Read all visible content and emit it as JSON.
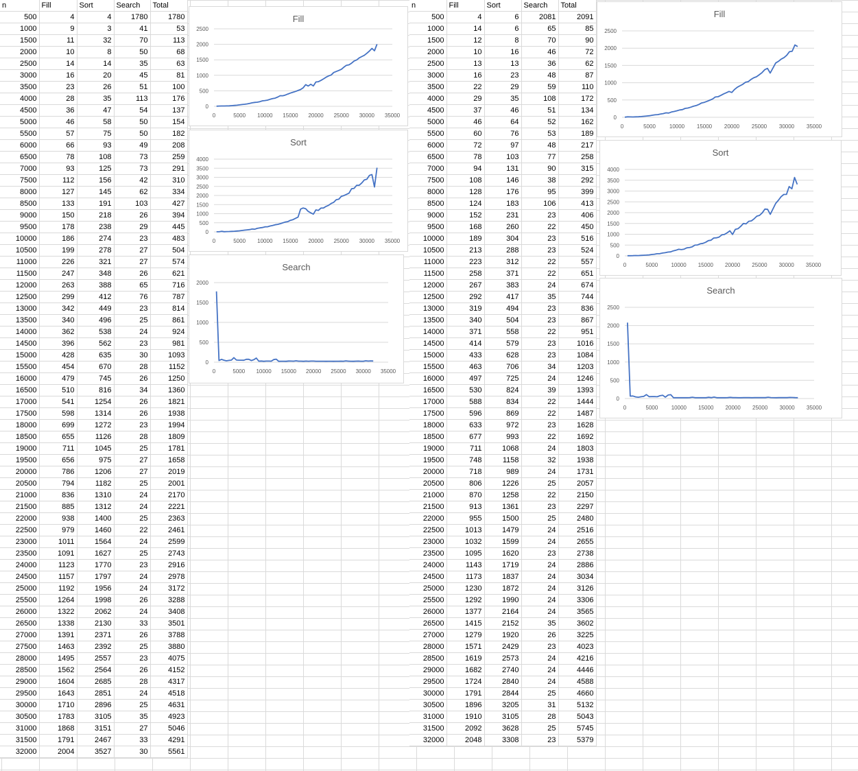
{
  "sheet": {
    "left_table": {
      "headers": [
        "n",
        "Fill",
        "Sort",
        "Search",
        "Total"
      ],
      "rows": [
        [
          500,
          4,
          4,
          1780,
          1780
        ],
        [
          1000,
          9,
          3,
          41,
          53
        ],
        [
          1500,
          11,
          32,
          70,
          113
        ],
        [
          2000,
          10,
          8,
          50,
          68
        ],
        [
          2500,
          14,
          14,
          35,
          63
        ],
        [
          3000,
          16,
          20,
          45,
          81
        ],
        [
          3500,
          23,
          26,
          51,
          100
        ],
        [
          4000,
          28,
          35,
          113,
          176
        ],
        [
          4500,
          36,
          47,
          54,
          137
        ],
        [
          5000,
          46,
          58,
          50,
          154
        ],
        [
          5500,
          57,
          75,
          50,
          182
        ],
        [
          6000,
          66,
          93,
          49,
          208
        ],
        [
          6500,
          78,
          108,
          73,
          259
        ],
        [
          7000,
          93,
          125,
          73,
          291
        ],
        [
          7500,
          112,
          156,
          42,
          310
        ],
        [
          8000,
          127,
          145,
          62,
          334
        ],
        [
          8500,
          133,
          191,
          103,
          427
        ],
        [
          9000,
          150,
          218,
          26,
          394
        ],
        [
          9500,
          178,
          238,
          29,
          445
        ],
        [
          10000,
          186,
          274,
          23,
          483
        ],
        [
          10500,
          199,
          278,
          27,
          504
        ],
        [
          11000,
          226,
          321,
          27,
          574
        ],
        [
          11500,
          247,
          348,
          26,
          621
        ],
        [
          12000,
          263,
          388,
          65,
          716
        ],
        [
          12500,
          299,
          412,
          76,
          787
        ],
        [
          13000,
          342,
          449,
          23,
          814
        ],
        [
          13500,
          340,
          496,
          25,
          861
        ],
        [
          14000,
          362,
          538,
          24,
          924
        ],
        [
          14500,
          396,
          562,
          23,
          981
        ],
        [
          15000,
          428,
          635,
          30,
          1093
        ],
        [
          15500,
          454,
          670,
          28,
          1152
        ],
        [
          16000,
          479,
          745,
          26,
          1250
        ],
        [
          16500,
          510,
          816,
          34,
          1360
        ],
        [
          17000,
          541,
          1254,
          26,
          1821
        ],
        [
          17500,
          598,
          1314,
          26,
          1938
        ],
        [
          18000,
          699,
          1272,
          23,
          1994
        ],
        [
          18500,
          655,
          1126,
          28,
          1809
        ],
        [
          19000,
          711,
          1045,
          25,
          1781
        ],
        [
          19500,
          656,
          975,
          27,
          1658
        ],
        [
          20000,
          786,
          1206,
          27,
          2019
        ],
        [
          20500,
          794,
          1182,
          25,
          2001
        ],
        [
          21000,
          836,
          1310,
          24,
          2170
        ],
        [
          21500,
          885,
          1312,
          24,
          2221
        ],
        [
          22000,
          938,
          1400,
          25,
          2363
        ],
        [
          22500,
          979,
          1460,
          22,
          2461
        ],
        [
          23000,
          1011,
          1564,
          24,
          2599
        ],
        [
          23500,
          1091,
          1627,
          25,
          2743
        ],
        [
          24000,
          1123,
          1770,
          23,
          2916
        ],
        [
          24500,
          1157,
          1797,
          24,
          2978
        ],
        [
          25000,
          1192,
          1956,
          24,
          3172
        ],
        [
          25500,
          1264,
          1998,
          26,
          3288
        ],
        [
          26000,
          1322,
          2062,
          24,
          3408
        ],
        [
          26500,
          1338,
          2130,
          33,
          3501
        ],
        [
          27000,
          1391,
          2371,
          26,
          3788
        ],
        [
          27500,
          1463,
          2392,
          25,
          3880
        ],
        [
          28000,
          1495,
          2557,
          23,
          4075
        ],
        [
          28500,
          1562,
          2564,
          26,
          4152
        ],
        [
          29000,
          1604,
          2685,
          28,
          4317
        ],
        [
          29500,
          1643,
          2851,
          24,
          4518
        ],
        [
          30000,
          1710,
          2896,
          25,
          4631
        ],
        [
          30500,
          1783,
          3105,
          35,
          4923
        ],
        [
          31000,
          1868,
          3151,
          27,
          5046
        ],
        [
          31500,
          1791,
          2467,
          33,
          4291
        ],
        [
          32000,
          2004,
          3527,
          30,
          5561
        ]
      ]
    },
    "right_table": {
      "headers": [
        "n",
        "Fill",
        "Sort",
        "Search",
        "Total"
      ],
      "rows": [
        [
          500,
          4,
          6,
          2081,
          2091
        ],
        [
          1000,
          14,
          6,
          65,
          85
        ],
        [
          1500,
          12,
          8,
          70,
          90
        ],
        [
          2000,
          10,
          16,
          46,
          72
        ],
        [
          2500,
          13,
          13,
          36,
          62
        ],
        [
          3000,
          16,
          23,
          48,
          87
        ],
        [
          3500,
          22,
          29,
          59,
          110
        ],
        [
          4000,
          29,
          35,
          108,
          172
        ],
        [
          4500,
          37,
          46,
          51,
          134
        ],
        [
          5000,
          46,
          64,
          52,
          162
        ],
        [
          5500,
          60,
          76,
          53,
          189
        ],
        [
          6000,
          72,
          97,
          48,
          217
        ],
        [
          6500,
          78,
          103,
          77,
          258
        ],
        [
          7000,
          94,
          131,
          90,
          315
        ],
        [
          7500,
          108,
          146,
          38,
          292
        ],
        [
          8000,
          128,
          176,
          95,
          399
        ],
        [
          8500,
          124,
          183,
          106,
          413
        ],
        [
          9000,
          152,
          231,
          23,
          406
        ],
        [
          9500,
          168,
          260,
          22,
          450
        ],
        [
          10000,
          189,
          304,
          23,
          516
        ],
        [
          10500,
          213,
          288,
          23,
          524
        ],
        [
          11000,
          223,
          312,
          22,
          557
        ],
        [
          11500,
          258,
          371,
          22,
          651
        ],
        [
          12000,
          267,
          383,
          24,
          674
        ],
        [
          12500,
          292,
          417,
          35,
          744
        ],
        [
          13000,
          319,
          494,
          23,
          836
        ],
        [
          13500,
          340,
          504,
          23,
          867
        ],
        [
          14000,
          371,
          558,
          22,
          951
        ],
        [
          14500,
          414,
          579,
          23,
          1016
        ],
        [
          15000,
          433,
          628,
          23,
          1084
        ],
        [
          15500,
          463,
          706,
          34,
          1203
        ],
        [
          16000,
          497,
          725,
          24,
          1246
        ],
        [
          16500,
          530,
          824,
          39,
          1393
        ],
        [
          17000,
          588,
          834,
          22,
          1444
        ],
        [
          17500,
          596,
          869,
          22,
          1487
        ],
        [
          18000,
          633,
          972,
          23,
          1628
        ],
        [
          18500,
          677,
          993,
          22,
          1692
        ],
        [
          19000,
          711,
          1068,
          24,
          1803
        ],
        [
          19500,
          748,
          1158,
          32,
          1938
        ],
        [
          20000,
          718,
          989,
          24,
          1731
        ],
        [
          20500,
          806,
          1226,
          25,
          2057
        ],
        [
          21000,
          870,
          1258,
          22,
          2150
        ],
        [
          21500,
          913,
          1361,
          23,
          2297
        ],
        [
          22000,
          955,
          1500,
          25,
          2480
        ],
        [
          22500,
          1013,
          1479,
          24,
          2516
        ],
        [
          23000,
          1032,
          1599,
          24,
          2655
        ],
        [
          23500,
          1095,
          1620,
          23,
          2738
        ],
        [
          24000,
          1143,
          1719,
          24,
          2886
        ],
        [
          24500,
          1173,
          1837,
          24,
          3034
        ],
        [
          25000,
          1230,
          1872,
          24,
          3126
        ],
        [
          25500,
          1292,
          1990,
          24,
          3306
        ],
        [
          26000,
          1377,
          2164,
          24,
          3565
        ],
        [
          26500,
          1415,
          2152,
          35,
          3602
        ],
        [
          27000,
          1279,
          1920,
          26,
          3225
        ],
        [
          28000,
          1571,
          2429,
          23,
          4023
        ],
        [
          28500,
          1619,
          2573,
          24,
          4216
        ],
        [
          29000,
          1682,
          2740,
          24,
          4446
        ],
        [
          29500,
          1724,
          2840,
          24,
          4588
        ],
        [
          30000,
          1791,
          2844,
          25,
          4660
        ],
        [
          30500,
          1896,
          3205,
          31,
          5132
        ],
        [
          31000,
          1910,
          3105,
          28,
          5043
        ],
        [
          31500,
          2092,
          3628,
          25,
          5745
        ],
        [
          32000,
          2048,
          3308,
          23,
          5379
        ]
      ]
    }
  },
  "chart_data": [
    {
      "type": "line",
      "title": "Fill",
      "source": "left_table",
      "column": 1,
      "xlim": [
        0,
        35000
      ],
      "ylim": [
        0,
        2500
      ],
      "xticks": [
        0,
        5000,
        10000,
        15000,
        20000,
        25000,
        30000,
        35000
      ],
      "yticks": [
        0,
        500,
        1000,
        1500,
        2000,
        2500
      ],
      "grid": true,
      "color": "#4472c4"
    },
    {
      "type": "line",
      "title": "Sort",
      "source": "left_table",
      "column": 2,
      "xlim": [
        0,
        35000
      ],
      "ylim": [
        0,
        4000
      ],
      "xticks": [
        0,
        5000,
        10000,
        15000,
        20000,
        25000,
        30000,
        35000
      ],
      "yticks": [
        0,
        500,
        1000,
        1500,
        2000,
        2500,
        3000,
        3500,
        4000
      ],
      "grid": true,
      "color": "#4472c4"
    },
    {
      "type": "line",
      "title": "Search",
      "source": "left_table",
      "column": 3,
      "xlim": [
        0,
        35000
      ],
      "ylim": [
        0,
        2000
      ],
      "xticks": [
        0,
        5000,
        10000,
        15000,
        20000,
        25000,
        30000,
        35000
      ],
      "yticks": [
        0,
        500,
        1000,
        1500,
        2000
      ],
      "grid": true,
      "color": "#4472c4"
    },
    {
      "type": "line",
      "title": "Fill",
      "source": "right_table",
      "column": 1,
      "xlim": [
        0,
        35000
      ],
      "ylim": [
        0,
        2500
      ],
      "xticks": [
        0,
        5000,
        10000,
        15000,
        20000,
        25000,
        30000,
        35000
      ],
      "yticks": [
        0,
        500,
        1000,
        1500,
        2000,
        2500
      ],
      "grid": true,
      "color": "#4472c4"
    },
    {
      "type": "line",
      "title": "Sort",
      "source": "right_table",
      "column": 2,
      "xlim": [
        0,
        35000
      ],
      "ylim": [
        0,
        4000
      ],
      "xticks": [
        0,
        5000,
        10000,
        15000,
        20000,
        25000,
        30000,
        35000
      ],
      "yticks": [
        0,
        500,
        1000,
        1500,
        2000,
        2500,
        3000,
        3500,
        4000
      ],
      "grid": true,
      "color": "#4472c4"
    },
    {
      "type": "line",
      "title": "Search",
      "source": "right_table",
      "column": 3,
      "xlim": [
        0,
        35000
      ],
      "ylim": [
        0,
        2500
      ],
      "xticks": [
        0,
        5000,
        10000,
        15000,
        20000,
        25000,
        30000,
        35000
      ],
      "yticks": [
        0,
        500,
        1000,
        1500,
        2000,
        2500
      ],
      "grid": true,
      "color": "#4472c4"
    }
  ]
}
